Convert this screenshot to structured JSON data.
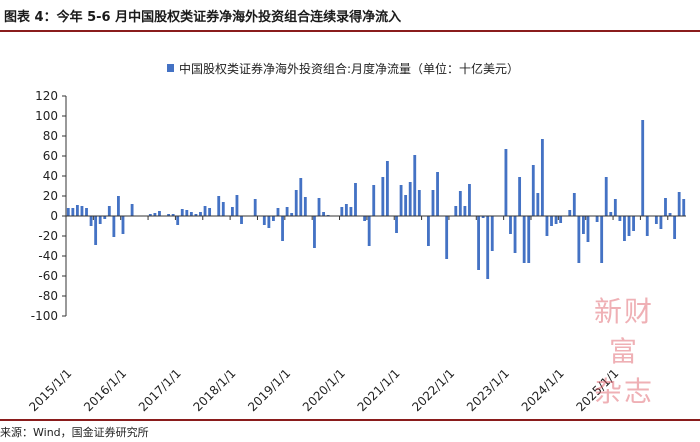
{
  "figure": {
    "title": "图表 4：今年 5-6 月中国股权类证券净海外投资组合连续录得净流入",
    "source": "来源：Wind，国金证券研究所",
    "watermark_line1": "新财富",
    "watermark_line2": "杂志"
  },
  "colors": {
    "bar": "#4472C4",
    "axis": "#333333",
    "rule": "#8a1c1c"
  },
  "chart_data": {
    "type": "bar",
    "title": "",
    "xlabel": "",
    "ylabel": "",
    "x_start": "2015/1",
    "x_end": "2025/6",
    "ylim": [
      -100,
      120
    ],
    "yticks": [
      -100,
      -80,
      -60,
      -40,
      -20,
      0,
      20,
      40,
      60,
      80,
      100,
      120
    ],
    "xtick_labels": [
      "2015/1/1",
      "2016/1/1",
      "2017/1/1",
      "2018/1/1",
      "2019/1/1",
      "2020/1/1",
      "2021/1/1",
      "2022/1/1",
      "2023/1/1",
      "2024/1/1",
      "2025/1/1"
    ],
    "legend": {
      "position": "top",
      "entries": [
        "中国股权类证券净海外投资组合:月度净流量（单位：十亿美元）"
      ]
    },
    "grid": false,
    "series": [
      {
        "name": "中国股权类证券净海外投资组合:月度净流量（单位：十亿美元）",
        "values": [
          8,
          8,
          11,
          10,
          8,
          -10,
          -29,
          -8,
          -3,
          10,
          -21,
          20,
          -18,
          0,
          12,
          0,
          0,
          0,
          2,
          3,
          5,
          0,
          2,
          2,
          -9,
          7,
          6,
          4,
          2,
          4,
          10,
          8,
          0,
          20,
          14,
          0,
          9,
          21,
          -8,
          0,
          0,
          17,
          0,
          -9,
          -12,
          -5,
          8,
          -25,
          9,
          3,
          26,
          38,
          19,
          0,
          -32,
          18,
          4,
          1,
          0,
          0,
          9,
          12,
          9,
          33,
          0,
          -5,
          -30,
          31,
          0,
          39,
          55,
          0,
          -17,
          31,
          21,
          34,
          61,
          26,
          0,
          -30,
          26,
          44,
          0,
          -43,
          0,
          10,
          25,
          10,
          32,
          0,
          -54,
          -2,
          -63,
          -35,
          0,
          0,
          67,
          -18,
          -37,
          39,
          -47,
          -47,
          51,
          23,
          77,
          -20,
          -10,
          -8,
          -7,
          0,
          6,
          23,
          -47,
          -18,
          -26,
          0,
          -6,
          -47,
          39,
          4,
          17,
          -5,
          -25,
          -20,
          -15,
          0,
          96,
          -20,
          0,
          -8,
          -13,
          18,
          3,
          -23,
          24,
          17
        ]
      }
    ]
  }
}
